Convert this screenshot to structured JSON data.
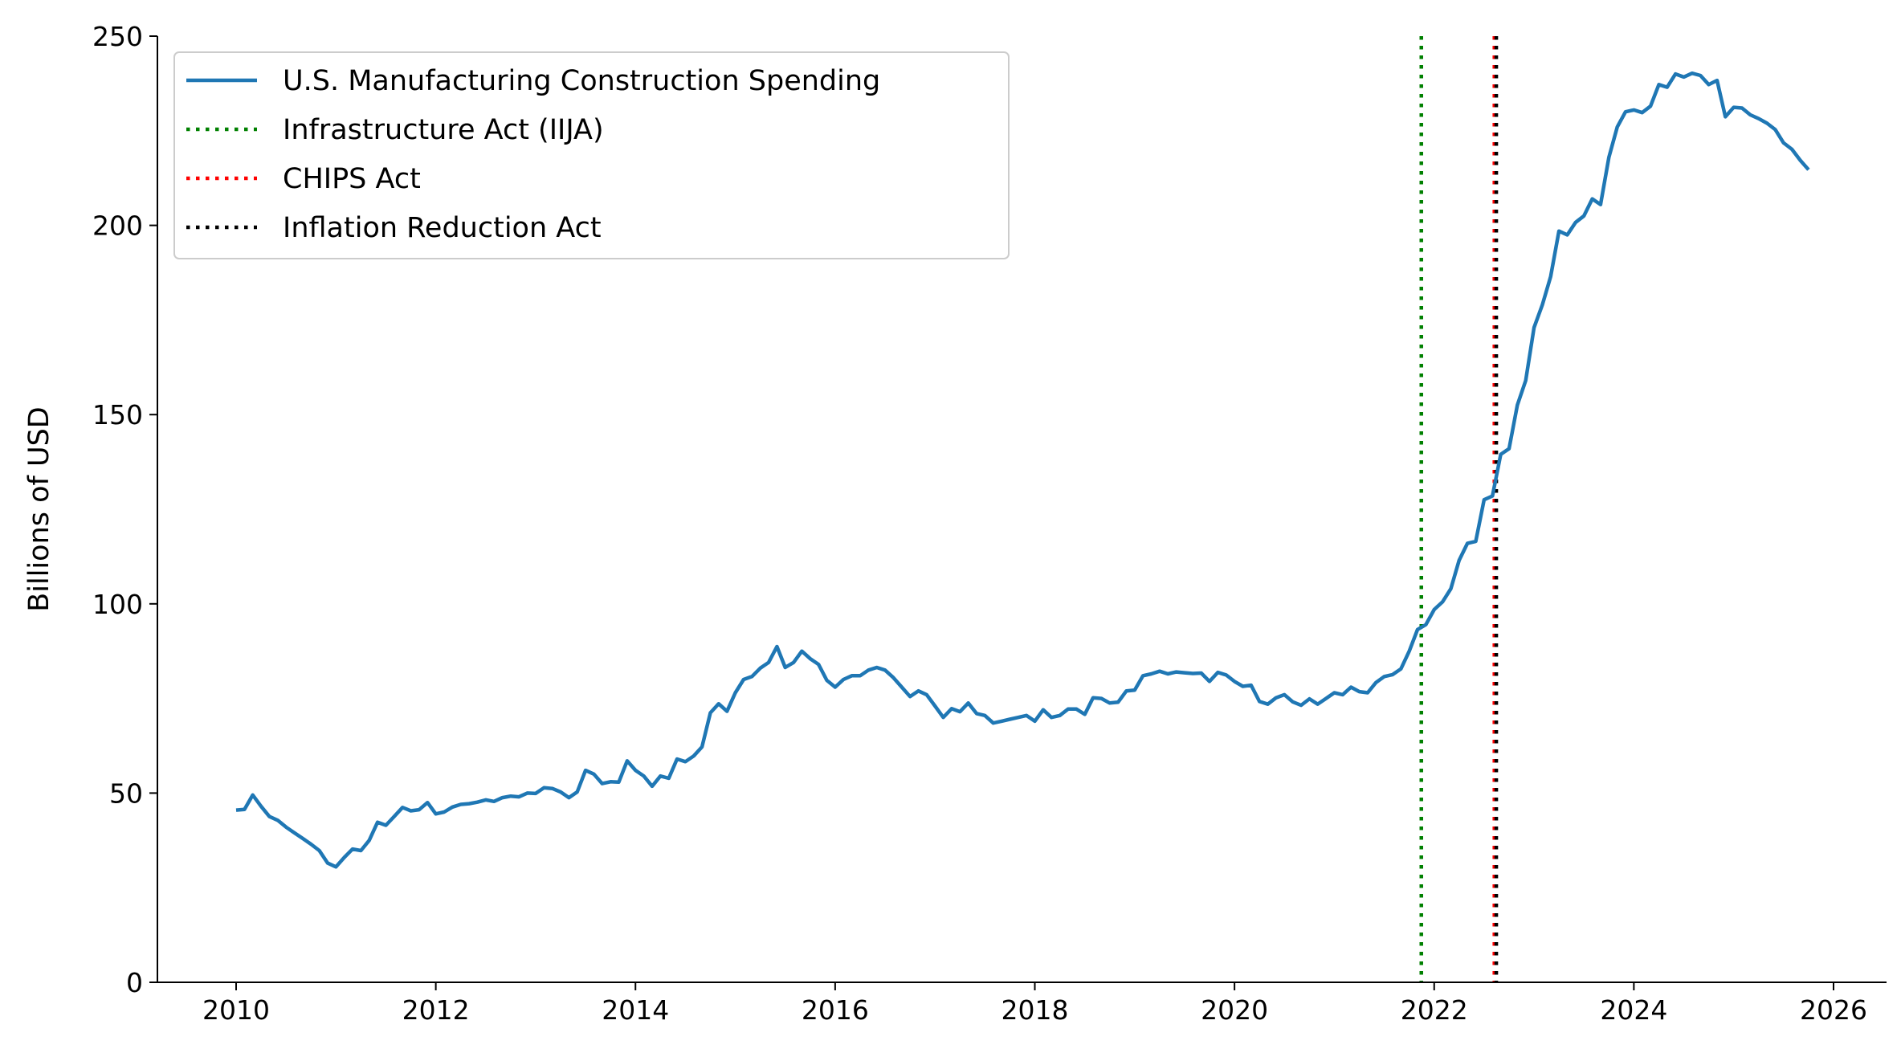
{
  "chart_data": {
    "type": "line",
    "title": "",
    "xlabel": "",
    "ylabel": "Billions of USD",
    "xlim": [
      2009.2,
      2026.5
    ],
    "ylim": [
      0,
      250
    ],
    "x_ticks": [
      "2010",
      "2012",
      "2014",
      "2016",
      "2018",
      "2020",
      "2022",
      "2024",
      "2026"
    ],
    "y_ticks": [
      "0",
      "50",
      "100",
      "150",
      "200",
      "250"
    ],
    "grid": false,
    "legend_position": "top-left",
    "x_start": "2010-01",
    "x_frequency": "monthly",
    "series": [
      {
        "name": "U.S. Manufacturing Construction Spending",
        "color": "#1f77b4",
        "values": [
          45.5,
          45.7,
          49.5,
          46.5,
          43.8,
          42.8,
          41,
          39.5,
          38,
          36.5,
          34.8,
          31.5,
          30.5,
          33,
          35.2,
          34.8,
          37.5,
          42.3,
          41.5,
          43.8,
          46.2,
          45.3,
          45.6,
          47.5,
          44.5,
          45,
          46.3,
          47,
          47.2,
          47.6,
          48.2,
          47.8,
          48.8,
          49.2,
          49,
          50,
          49.9,
          51.4,
          51.2,
          50.3,
          48.8,
          50.3,
          56,
          55,
          52.5,
          53,
          52.9,
          58.5,
          56,
          54.5,
          51.8,
          54.5,
          53.9,
          59,
          58.3,
          59.8,
          62.2,
          71.2,
          73.6,
          71.6,
          76.5,
          80,
          80.8,
          83,
          84.5,
          88.7,
          83.2,
          84.5,
          87.5,
          85.5,
          84,
          79.8,
          78,
          80,
          81,
          81,
          82.5,
          83.2,
          82.5,
          80.5,
          78,
          75.5,
          77,
          76,
          73,
          70,
          72.3,
          71.5,
          73.8,
          71,
          70.5,
          68.5,
          69,
          69.5,
          70,
          70.5,
          69,
          72,
          70,
          70.5,
          72.2,
          72.2,
          70.8,
          75.2,
          75,
          73.8,
          74,
          77,
          77.2,
          81,
          81.5,
          82.2,
          81.5,
          82,
          81.8,
          81.6,
          81.7,
          79.5,
          81.9,
          81.2,
          79.5,
          78.2,
          78.5,
          74.2,
          73.5,
          75.2,
          76,
          74.1,
          73.2,
          74.9,
          73.5,
          75,
          76.5,
          76,
          78,
          76.8,
          76.5,
          79.2,
          80.8,
          81.3,
          82.8,
          87.5,
          93.2,
          94.5,
          98.5,
          100.5,
          104,
          111.5,
          116,
          116.5,
          127.5,
          128.5,
          139.5,
          141,
          152.5,
          159,
          173,
          179,
          186.5,
          198.5,
          197.5,
          200.8,
          202.5,
          207,
          205.5,
          218,
          226,
          230,
          230.5,
          229.8,
          231.5,
          237.2,
          236.5,
          240,
          239.2,
          240.2,
          239.6,
          237.2,
          238.3,
          228.7,
          231.2,
          231,
          229.2,
          228.2,
          227,
          225.3,
          221.8,
          220.1,
          217.2,
          214.7
        ]
      }
    ],
    "vertical_lines": [
      {
        "name": "Infrastructure Act (IIJA)",
        "x": "2021-11-15",
        "color": "#008000",
        "style": "dotted"
      },
      {
        "name": "CHIPS Act",
        "x": "2022-08-09",
        "color": "#ff0000",
        "style": "dotted"
      },
      {
        "name": "Inflation Reduction Act",
        "x": "2022-08-16",
        "color": "#000000",
        "style": "dotted"
      }
    ]
  }
}
